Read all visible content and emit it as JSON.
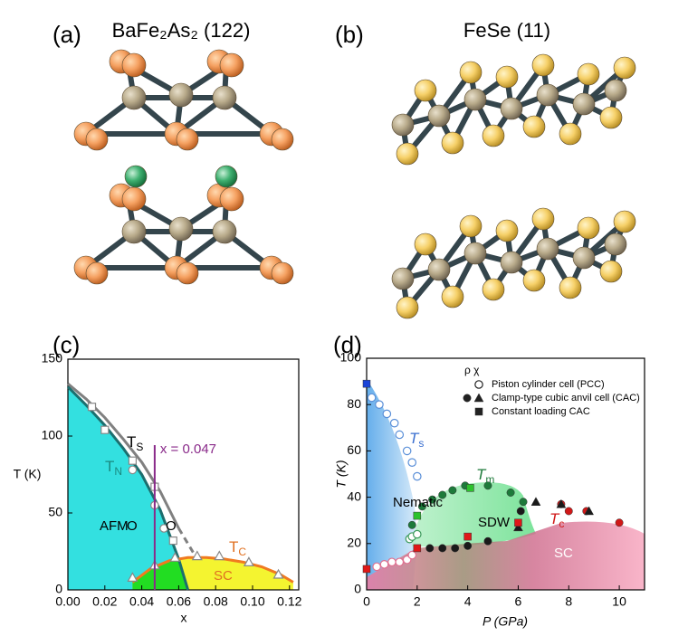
{
  "panels": [
    {
      "label": "(a)",
      "title": "BaFe₂As₂ (122)"
    },
    {
      "label": "(b)",
      "title": "FeSe (11)"
    },
    {
      "label": "(c)"
    },
    {
      "label": "(d)"
    }
  ],
  "chart_data": [
    {
      "type": "scatter",
      "x_label": "x",
      "y_label": "T (K)",
      "xlim": [
        0,
        0.125
      ],
      "ylim": [
        0,
        150
      ],
      "xticks": [
        {
          "value": 0,
          "label": "0.00"
        },
        {
          "value": 0.02,
          "label": "0.02"
        },
        {
          "value": 0.04,
          "label": "0.04"
        },
        {
          "value": 0.06,
          "label": "0.06"
        },
        {
          "value": 0.08,
          "label": "0.08"
        },
        {
          "value": 0.1,
          "label": "0.10"
        },
        {
          "value": 0.12,
          "label": "0.12"
        }
      ],
      "yticks": [
        0,
        50,
        100,
        150
      ],
      "series": [
        {
          "style": "line",
          "color": "#808080",
          "x": [
            0,
            0.01,
            0.02,
            0.03,
            0.04,
            0.05,
            0.06
          ],
          "values": [
            134,
            124,
            112,
            98,
            83,
            64,
            40
          ]
        },
        {
          "style": "line",
          "dash": true,
          "color": "#808080",
          "x": [
            0.06,
            0.07
          ],
          "values": [
            40,
            20
          ]
        },
        {
          "style": "line",
          "fill": "#33e0e0",
          "color": "#1c6e6e",
          "x": [
            0,
            0.01,
            0.02,
            0.03,
            0.04,
            0.05,
            0.06,
            0.065
          ],
          "values": [
            132,
            120,
            107,
            92,
            75,
            52,
            20,
            0
          ]
        },
        {
          "style": "line",
          "fill": "#f4f430",
          "color": "#f07a20",
          "x": [
            0.035,
            0.045,
            0.055,
            0.065,
            0.075,
            0.085,
            0.095,
            0.105,
            0.115,
            0.122
          ],
          "values": [
            5,
            14,
            19,
            21,
            21,
            20,
            18,
            15,
            10,
            5
          ]
        },
        {
          "style": "points",
          "marker": "open-square",
          "color": "#888888",
          "x": [
            0.013,
            0.02,
            0.035,
            0.047,
            0.057
          ],
          "values": [
            119,
            104,
            84,
            67,
            32
          ]
        },
        {
          "style": "points",
          "marker": "open-circle",
          "color": "#888888",
          "x": [
            0.035,
            0.047,
            0.052
          ],
          "values": [
            78,
            55,
            40
          ]
        },
        {
          "style": "points",
          "marker": "open-triangle",
          "color": "#888888",
          "x": [
            0.035,
            0.047,
            0.058,
            0.07,
            0.082,
            0.098,
            0.114
          ],
          "values": [
            8,
            16,
            21,
            22,
            22,
            18,
            10
          ]
        }
      ],
      "overlap_fill": "#22dd22",
      "marker_line": {
        "x": 0.047,
        "label": "x = 0.047",
        "color": "#8a2a8a"
      },
      "annotations": [
        {
          "text": "T",
          "sub": "S",
          "color": "#000000"
        },
        {
          "text": "T",
          "sub": "N",
          "color": "#1a8a80"
        },
        {
          "text": "AFM",
          "color": "#000000"
        },
        {
          "text": "O",
          "color": "#000000"
        },
        {
          "text": "O",
          "color": "#000000"
        },
        {
          "text": "T",
          "sub": "C",
          "color": "#e07020"
        },
        {
          "text": "SC",
          "color": "#e07020"
        }
      ]
    },
    {
      "type": "scatter",
      "x_label": "P (GPa)",
      "y_label": "T (K)",
      "xlim": [
        0,
        11
      ],
      "ylim": [
        0,
        100
      ],
      "xticks": [
        0,
        2,
        4,
        6,
        8,
        10
      ],
      "yticks": [
        0,
        20,
        40,
        60,
        80,
        100
      ],
      "series": [
        {
          "style": "points",
          "marker": "open-circle",
          "color": "#5a8fd8",
          "x": [
            0.2,
            0.5,
            0.8,
            1.1,
            1.3,
            1.6,
            1.8,
            2.0
          ],
          "values": [
            83,
            80,
            76,
            72,
            67,
            60,
            55,
            49
          ]
        },
        {
          "style": "points",
          "marker": "square",
          "color": "#1a44d8",
          "x": [
            0
          ],
          "values": [
            89
          ]
        },
        {
          "style": "points",
          "marker": "open-circle",
          "color": "#e07090",
          "x": [
            0.4,
            0.7,
            1.0,
            1.3,
            1.6,
            1.8
          ],
          "values": [
            10,
            11,
            12,
            12,
            13,
            15
          ]
        },
        {
          "style": "points",
          "marker": "open-circle",
          "color": "#3a9a5a",
          "x": [
            1.7,
            1.8,
            2.0
          ],
          "values": [
            22,
            23,
            24
          ]
        },
        {
          "style": "points",
          "marker": "circle",
          "color": "#1d7a3a",
          "x": [
            1.8,
            2.2,
            2.6,
            3.0,
            3.4,
            3.9,
            4.8,
            5.7,
            6.2
          ],
          "values": [
            28,
            36,
            39,
            41,
            43,
            45,
            45,
            42,
            38
          ]
        },
        {
          "style": "points",
          "marker": "square",
          "color": "#2cc22c",
          "x": [
            2.0,
            4.1
          ],
          "values": [
            32,
            44
          ]
        },
        {
          "style": "points",
          "marker": "circle",
          "color": "#1a1a1a",
          "x": [
            2.5,
            3.0,
            3.5,
            4.0,
            4.8,
            6.1
          ],
          "values": [
            18,
            18,
            18,
            19,
            21,
            34
          ]
        },
        {
          "style": "points",
          "marker": "circle",
          "color": "#d01818",
          "x": [
            7.7,
            8.0,
            8.7,
            10.0
          ],
          "values": [
            37,
            34,
            34,
            29
          ]
        },
        {
          "style": "points",
          "marker": "triangle",
          "color": "#1a1a1a",
          "x": [
            6.0,
            6.7,
            7.7,
            8.8
          ],
          "values": [
            27,
            38,
            37,
            34
          ]
        },
        {
          "style": "points",
          "marker": "square",
          "color": "#e01818",
          "x": [
            0,
            2.0,
            4.0,
            6.0
          ],
          "values": [
            9,
            18,
            23,
            29
          ]
        }
      ],
      "legend_header": "ρ χ",
      "legend": [
        "Piston cylinder cell (PCC)",
        "Clamp-type cubic anvil cell (CAC)",
        "Constant loading CAC"
      ],
      "annotations": [
        {
          "text": "T",
          "sub": "s",
          "color": "#3a6fd0"
        },
        {
          "text": "T",
          "sub": "m",
          "color": "#1d7a3a"
        },
        {
          "text": "T",
          "sub": "c",
          "color": "#d01818"
        },
        {
          "text": "Nematic",
          "color": "#000000"
        },
        {
          "text": "SDW",
          "color": "#000000"
        },
        {
          "text": "SC",
          "color": "#ffffff"
        }
      ]
    }
  ]
}
